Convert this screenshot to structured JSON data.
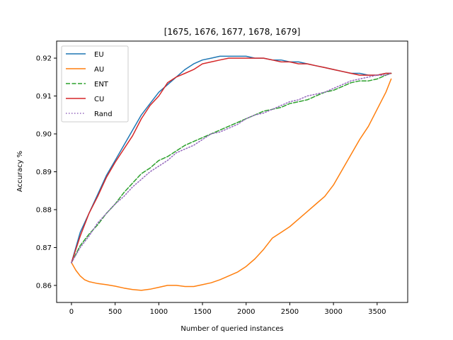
{
  "chart_data": {
    "type": "line",
    "title": "[1675, 1676, 1677, 1678, 1679]",
    "xlabel": "Number of queried instances",
    "ylabel": "Accuracy %",
    "xlim": [
      -170,
      3850
    ],
    "ylim": [
      0.8555,
      0.9245
    ],
    "x_ticks": [
      0,
      500,
      1000,
      1500,
      2000,
      2500,
      3000,
      3500
    ],
    "x_tick_labels": [
      "0",
      "500",
      "1000",
      "1500",
      "2000",
      "2500",
      "3000",
      "3500"
    ],
    "y_ticks": [
      0.86,
      0.87,
      0.88,
      0.89,
      0.9,
      0.91,
      0.92
    ],
    "y_tick_labels": [
      "0.86",
      "0.87",
      "0.88",
      "0.89",
      "0.90",
      "0.91",
      "0.92"
    ],
    "grid": false,
    "legend_position": "upper-left",
    "series": [
      {
        "name": "EU",
        "color": "#1f77b4",
        "style": "solid",
        "x": [
          0,
          100,
          200,
          300,
          400,
          500,
          600,
          700,
          800,
          900,
          1000,
          1100,
          1200,
          1300,
          1400,
          1500,
          1600,
          1700,
          1800,
          1900,
          2000,
          2100,
          2200,
          2300,
          2400,
          2500,
          2600,
          2700,
          2800,
          2900,
          3000,
          3100,
          3200,
          3300,
          3400,
          3500,
          3600,
          3660
        ],
        "y": [
          0.866,
          0.874,
          0.879,
          0.884,
          0.889,
          0.893,
          0.897,
          0.901,
          0.905,
          0.908,
          0.911,
          0.913,
          0.915,
          0.917,
          0.9185,
          0.9195,
          0.92,
          0.9205,
          0.9205,
          0.9205,
          0.9205,
          0.92,
          0.92,
          0.9195,
          0.9195,
          0.919,
          0.919,
          0.9185,
          0.918,
          0.9175,
          0.917,
          0.9165,
          0.916,
          0.916,
          0.9155,
          0.9155,
          0.916,
          0.916
        ]
      },
      {
        "name": "AU",
        "color": "#ff7f0e",
        "style": "solid",
        "x": [
          0,
          50,
          100,
          150,
          200,
          300,
          400,
          500,
          600,
          700,
          800,
          900,
          1000,
          1100,
          1200,
          1300,
          1400,
          1500,
          1600,
          1700,
          1800,
          1900,
          2000,
          2100,
          2200,
          2300,
          2400,
          2500,
          2600,
          2700,
          2800,
          2900,
          3000,
          3100,
          3200,
          3300,
          3400,
          3500,
          3600,
          3660
        ],
        "y": [
          0.866,
          0.864,
          0.8625,
          0.8615,
          0.861,
          0.8605,
          0.8602,
          0.8598,
          0.8593,
          0.8589,
          0.8587,
          0.859,
          0.8595,
          0.86,
          0.86,
          0.8597,
          0.8597,
          0.8602,
          0.8607,
          0.8615,
          0.8625,
          0.8635,
          0.865,
          0.867,
          0.8695,
          0.8725,
          0.874,
          0.8755,
          0.8775,
          0.8795,
          0.8815,
          0.8835,
          0.8865,
          0.8905,
          0.8945,
          0.8985,
          0.902,
          0.9065,
          0.911,
          0.9145
        ]
      },
      {
        "name": "ENT",
        "color": "#2ca02c",
        "style": "dashed",
        "x": [
          0,
          100,
          200,
          300,
          400,
          500,
          600,
          700,
          800,
          900,
          1000,
          1100,
          1200,
          1300,
          1400,
          1500,
          1600,
          1700,
          1800,
          1900,
          2000,
          2100,
          2200,
          2300,
          2400,
          2500,
          2600,
          2700,
          2800,
          2900,
          3000,
          3100,
          3200,
          3300,
          3400,
          3500,
          3600,
          3660
        ],
        "y": [
          0.866,
          0.8705,
          0.8735,
          0.876,
          0.879,
          0.8815,
          0.8845,
          0.887,
          0.8895,
          0.891,
          0.893,
          0.894,
          0.8955,
          0.897,
          0.898,
          0.899,
          0.9,
          0.901,
          0.902,
          0.903,
          0.904,
          0.905,
          0.906,
          0.9065,
          0.907,
          0.908,
          0.9085,
          0.909,
          0.91,
          0.911,
          0.9115,
          0.9125,
          0.9135,
          0.914,
          0.914,
          0.9145,
          0.9155,
          0.916
        ]
      },
      {
        "name": "CU",
        "color": "#d62728",
        "style": "solid",
        "x": [
          0,
          100,
          200,
          300,
          400,
          500,
          600,
          700,
          800,
          900,
          1000,
          1100,
          1200,
          1300,
          1400,
          1500,
          1600,
          1700,
          1800,
          1900,
          2000,
          2100,
          2200,
          2300,
          2400,
          2500,
          2600,
          2700,
          2800,
          2900,
          3000,
          3100,
          3200,
          3300,
          3400,
          3500,
          3600,
          3660
        ],
        "y": [
          0.866,
          0.873,
          0.879,
          0.8835,
          0.8885,
          0.8925,
          0.896,
          0.8995,
          0.904,
          0.9075,
          0.91,
          0.9135,
          0.915,
          0.916,
          0.917,
          0.9185,
          0.919,
          0.9195,
          0.92,
          0.92,
          0.92,
          0.92,
          0.92,
          0.9195,
          0.919,
          0.919,
          0.9185,
          0.9185,
          0.918,
          0.9175,
          0.917,
          0.9165,
          0.916,
          0.9155,
          0.9155,
          0.9155,
          0.916,
          0.916
        ]
      },
      {
        "name": "Rand",
        "color": "#9467bd",
        "style": "dotted",
        "x": [
          0,
          100,
          200,
          300,
          400,
          500,
          600,
          700,
          800,
          900,
          1000,
          1100,
          1200,
          1300,
          1400,
          1500,
          1600,
          1700,
          1800,
          1900,
          2000,
          2100,
          2200,
          2300,
          2400,
          2500,
          2600,
          2700,
          2800,
          2900,
          3000,
          3100,
          3200,
          3300,
          3400,
          3500,
          3600,
          3660
        ],
        "y": [
          0.866,
          0.87,
          0.873,
          0.8765,
          0.879,
          0.8815,
          0.8835,
          0.886,
          0.888,
          0.89,
          0.8915,
          0.893,
          0.895,
          0.896,
          0.897,
          0.8985,
          0.9,
          0.9005,
          0.9015,
          0.9025,
          0.904,
          0.905,
          0.9055,
          0.9065,
          0.9075,
          0.9085,
          0.909,
          0.91,
          0.9105,
          0.911,
          0.912,
          0.913,
          0.914,
          0.9145,
          0.915,
          0.9155,
          0.9155,
          0.916
        ]
      }
    ]
  }
}
